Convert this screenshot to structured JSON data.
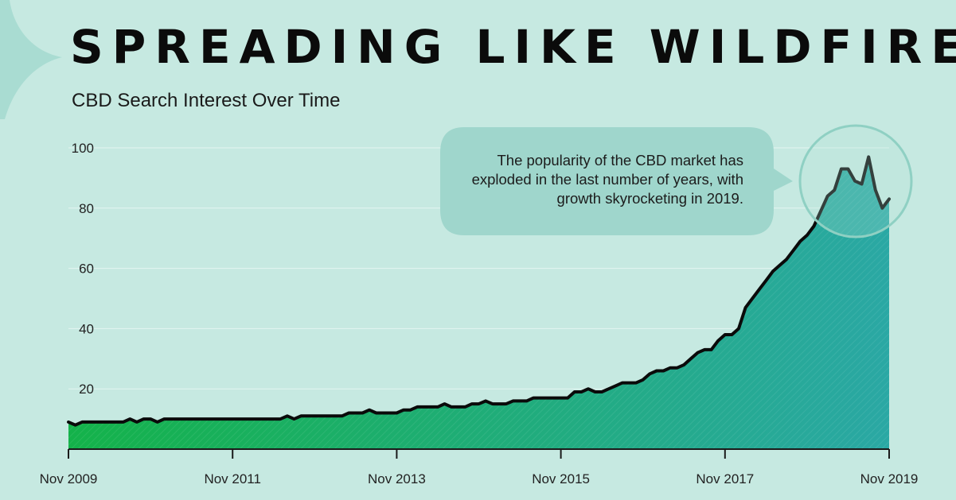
{
  "header": {
    "title": "SPREADING LIKE WILDFIRE",
    "subtitle": "CBD Search Interest Over Time"
  },
  "callout": {
    "text": "The popularity of the CBD market has exploded in the last number of years, with growth skyrocketing in 2019."
  },
  "colors": {
    "background": "#c6e9e1",
    "area_start": "#14b24a",
    "area_end": "#2aa8a4",
    "line": "#0a0a0a",
    "callout_fill": "#9fd6cc"
  },
  "chart_data": {
    "type": "area",
    "title": "SPREADING LIKE WILDFIRE",
    "subtitle": "CBD Search Interest Over Time",
    "xlabel": "",
    "ylabel": "",
    "ylim": [
      0,
      100
    ],
    "yticks": [
      20,
      40,
      60,
      80,
      100
    ],
    "xlim": [
      "Nov 2009",
      "Nov 2019"
    ],
    "xticks": [
      "Nov 2009",
      "Nov 2011",
      "Nov 2013",
      "Nov 2015",
      "Nov 2017",
      "Nov 2019"
    ],
    "grid": true,
    "series": [
      {
        "points": [
          [
            "Nov 2009",
            9
          ],
          [
            "Dec 2009",
            8
          ],
          [
            "Jan 2010",
            9
          ],
          [
            "Mar 2010",
            9
          ],
          [
            "May 2010",
            9
          ],
          [
            "Jul 2010",
            9
          ],
          [
            "Aug 2010",
            10
          ],
          [
            "Sep 2010",
            9
          ],
          [
            "Oct 2010",
            10
          ],
          [
            "Nov 2010",
            10
          ],
          [
            "Dec 2010",
            9
          ],
          [
            "Jan 2011",
            10
          ],
          [
            "Apr 2011",
            10
          ],
          [
            "Jul 2011",
            10
          ],
          [
            "Oct 2011",
            10
          ],
          [
            "Jan 2012",
            10
          ],
          [
            "Apr 2012",
            10
          ],
          [
            "Jun 2012",
            10
          ],
          [
            "Jul 2012",
            11
          ],
          [
            "Aug 2012",
            10
          ],
          [
            "Sep 2012",
            11
          ],
          [
            "Dec 2012",
            11
          ],
          [
            "Mar 2013",
            11
          ],
          [
            "Apr 2013",
            12
          ],
          [
            "Jun 2013",
            12
          ],
          [
            "Jul 2013",
            13
          ],
          [
            "Aug 2013",
            12
          ],
          [
            "Oct 2013",
            12
          ],
          [
            "Nov 2013",
            12
          ],
          [
            "Dec 2013",
            13
          ],
          [
            "Jan 2014",
            13
          ],
          [
            "Feb 2014",
            14
          ],
          [
            "May 2014",
            14
          ],
          [
            "Jun 2014",
            15
          ],
          [
            "Jul 2014",
            14
          ],
          [
            "Sep 2014",
            14
          ],
          [
            "Oct 2014",
            15
          ],
          [
            "Nov 2014",
            15
          ],
          [
            "Dec 2014",
            16
          ],
          [
            "Jan 2015",
            15
          ],
          [
            "Feb 2015",
            15
          ],
          [
            "Mar 2015",
            15
          ],
          [
            "Apr 2015",
            16
          ],
          [
            "Jun 2015",
            16
          ],
          [
            "Jul 2015",
            17
          ],
          [
            "Sep 2015",
            17
          ],
          [
            "Nov 2015",
            17
          ],
          [
            "Dec 2015",
            17
          ],
          [
            "Jan 2016",
            19
          ],
          [
            "Feb 2016",
            19
          ],
          [
            "Mar 2016",
            20
          ],
          [
            "Apr 2016",
            19
          ],
          [
            "May 2016",
            19
          ],
          [
            "Jun 2016",
            20
          ],
          [
            "Jul 2016",
            21
          ],
          [
            "Aug 2016",
            22
          ],
          [
            "Sep 2016",
            22
          ],
          [
            "Oct 2016",
            22
          ],
          [
            "Nov 2016",
            23
          ],
          [
            "Dec 2016",
            25
          ],
          [
            "Jan 2017",
            26
          ],
          [
            "Feb 2017",
            26
          ],
          [
            "Mar 2017",
            27
          ],
          [
            "Apr 2017",
            27
          ],
          [
            "May 2017",
            28
          ],
          [
            "Jun 2017",
            30
          ],
          [
            "Jul 2017",
            32
          ],
          [
            "Aug 2017",
            33
          ],
          [
            "Sep 2017",
            33
          ],
          [
            "Oct 2017",
            36
          ],
          [
            "Nov 2017",
            38
          ],
          [
            "Dec 2017",
            38
          ],
          [
            "Jan 2018",
            40
          ],
          [
            "Feb 2018",
            47
          ],
          [
            "Mar 2018",
            50
          ],
          [
            "Apr 2018",
            53
          ],
          [
            "May 2018",
            56
          ],
          [
            "Jun 2018",
            59
          ],
          [
            "Jul 2018",
            61
          ],
          [
            "Aug 2018",
            63
          ],
          [
            "Sep 2018",
            66
          ],
          [
            "Oct 2018",
            69
          ],
          [
            "Nov 2018",
            71
          ],
          [
            "Dec 2018",
            74
          ],
          [
            "Jan 2019",
            79
          ],
          [
            "Feb 2019",
            84
          ],
          [
            "Mar 2019",
            86
          ],
          [
            "Apr 2019",
            93
          ],
          [
            "May 2019",
            93
          ],
          [
            "Jun 2019",
            89
          ],
          [
            "Jul 2019",
            88
          ],
          [
            "Aug 2019",
            97
          ],
          [
            "Sep 2019",
            86
          ],
          [
            "Oct 2019",
            80
          ],
          [
            "Nov 2019",
            83
          ]
        ]
      }
    ]
  }
}
